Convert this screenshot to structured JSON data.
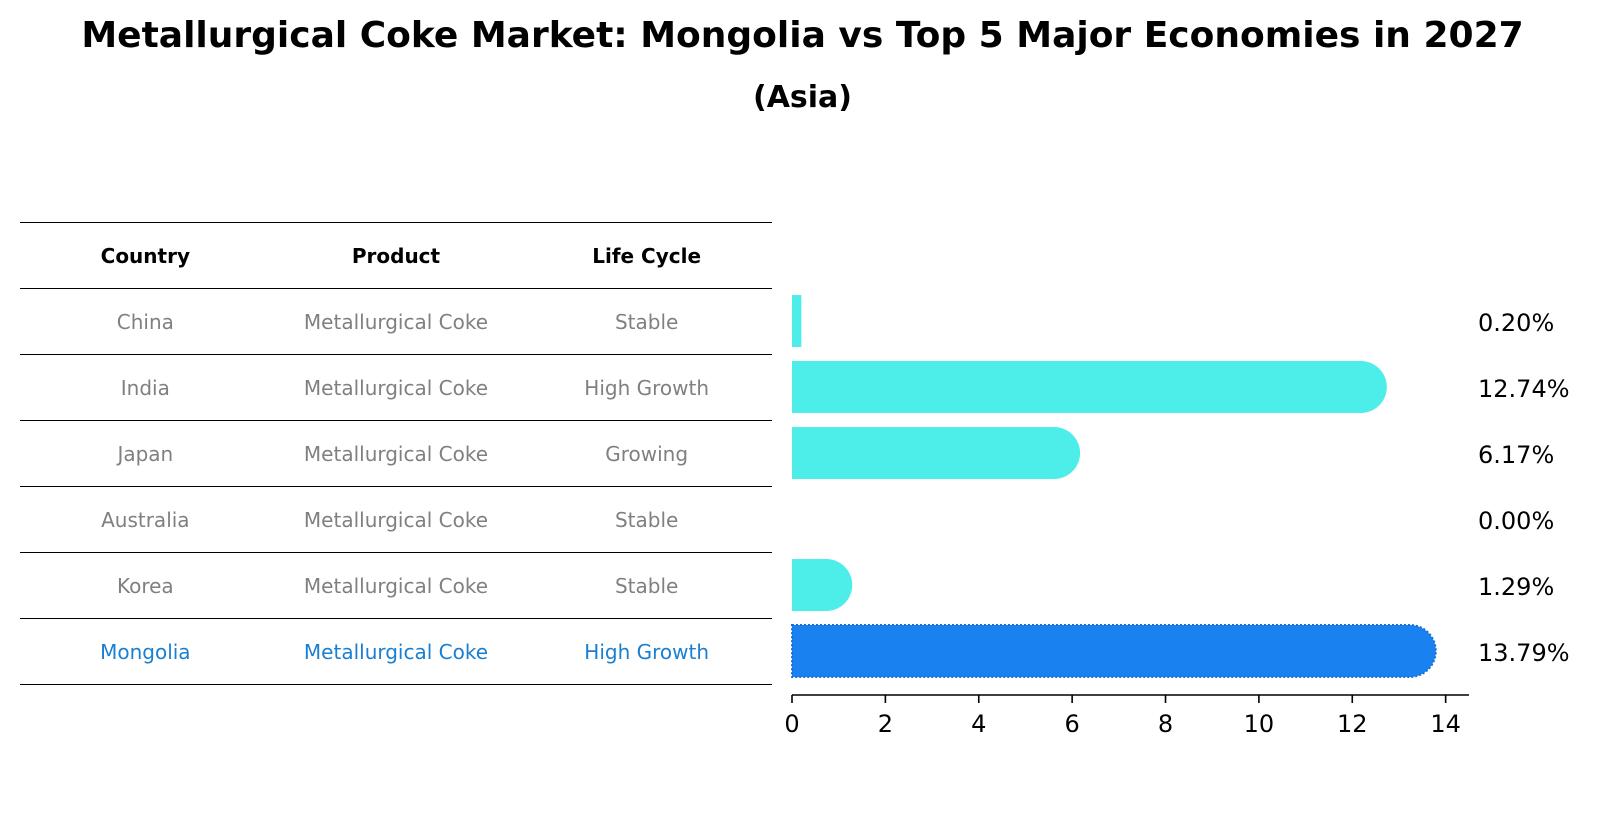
{
  "chart_data": {
    "type": "bar",
    "orientation": "horizontal",
    "title": "Metallurgical Coke Market: Mongolia vs Top 5 Major Economies in 2027",
    "subtitle": "(Asia)",
    "categories": [
      "China",
      "India",
      "Japan",
      "Australia",
      "Korea",
      "Mongolia"
    ],
    "values": [
      0.2,
      12.74,
      6.17,
      0.0,
      1.29,
      13.79
    ],
    "value_labels": [
      "0.20%",
      "12.74%",
      "6.17%",
      "0.00%",
      "1.29%",
      "13.79%"
    ],
    "xlim": [
      0,
      14.5
    ],
    "xticks": [
      0,
      2,
      4,
      6,
      8,
      10,
      12,
      14
    ],
    "xlabel": "",
    "ylabel": "",
    "grid": false,
    "highlight": "Mongolia",
    "colors": {
      "bar": "#4deee9",
      "highlight_bar": "#1a82f0",
      "highlight_text": "#1a7fd1",
      "table_text": "#808080"
    }
  },
  "table": {
    "headers": [
      "Country",
      "Product",
      "Life Cycle"
    ],
    "rows": [
      [
        "China",
        "Metallurgical Coke",
        "Stable"
      ],
      [
        "India",
        "Metallurgical Coke",
        "High Growth"
      ],
      [
        "Japan",
        "Metallurgical Coke",
        "Growing"
      ],
      [
        "Australia",
        "Metallurgical Coke",
        "Stable"
      ],
      [
        "Korea",
        "Metallurgical Coke",
        "Stable"
      ],
      [
        "Mongolia",
        "Metallurgical Coke",
        "High Growth"
      ]
    ]
  }
}
